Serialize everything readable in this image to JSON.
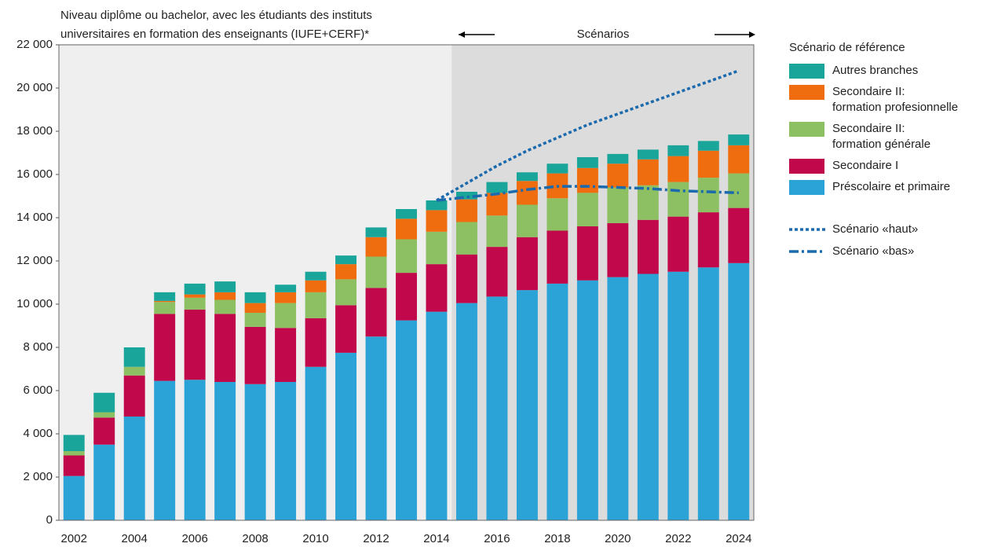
{
  "chart_data": {
    "type": "stacked_bar",
    "annotations": {
      "note": [
        "Niveau diplôme ou bachelor, avec les étudiants des instituts",
        "universitaires en formation des enseignants (IUFE+CERF)*"
      ],
      "scenarios": "Scénarios"
    },
    "legend_title": "Scénario de référence",
    "categories": [
      "2002",
      null,
      "2004",
      null,
      "2006",
      null,
      "2008",
      null,
      "2010",
      null,
      "2012",
      null,
      "2014",
      null,
      "2016",
      null,
      "2018",
      null,
      "2020",
      null,
      "2022",
      null,
      "2024"
    ],
    "series": [
      {
        "name": "Préscolaire et primaire",
        "color": "#2ba3d6",
        "values": [
          2050,
          3500,
          4800,
          6450,
          6500,
          6400,
          6300,
          6400,
          7100,
          7750,
          8500,
          9250,
          9650,
          10050,
          10350,
          10650,
          10950,
          11100,
          11250,
          11400,
          11500,
          11700,
          11900
        ]
      },
      {
        "name": "Secondaire I",
        "color": "#c0084a",
        "values": [
          950,
          1250,
          1900,
          3100,
          3250,
          3150,
          2650,
          2500,
          2250,
          2200,
          2250,
          2200,
          2200,
          2250,
          2300,
          2450,
          2450,
          2500,
          2500,
          2500,
          2550,
          2550,
          2550
        ]
      },
      {
        "name": "Secondaire II:\nformation générale",
        "color": "#8cc063",
        "values": [
          200,
          250,
          400,
          550,
          550,
          650,
          650,
          1150,
          1200,
          1200,
          1450,
          1550,
          1500,
          1500,
          1450,
          1500,
          1500,
          1550,
          1650,
          1600,
          1600,
          1600,
          1600
        ]
      },
      {
        "name": "Secondaire II:\nformation profesionnelle",
        "color": "#ef6c0f",
        "values": [
          0,
          0,
          0,
          50,
          150,
          350,
          450,
          500,
          550,
          700,
          900,
          950,
          1000,
          1050,
          1050,
          1100,
          1150,
          1150,
          1100,
          1200,
          1200,
          1250,
          1300
        ]
      },
      {
        "name": "Autres branches",
        "color": "#1aa59a",
        "values": [
          750,
          900,
          900,
          400,
          500,
          500,
          500,
          350,
          400,
          400,
          450,
          450,
          450,
          350,
          500,
          400,
          450,
          500,
          450,
          450,
          500,
          450,
          500
        ]
      }
    ],
    "lines": [
      {
        "name": "Scénario «haut»",
        "color": "#1a6aad",
        "style": "dotted",
        "values": [
          null,
          null,
          null,
          null,
          null,
          null,
          null,
          null,
          null,
          null,
          null,
          null,
          14800,
          15600,
          16400,
          17100,
          17700,
          18300,
          18800,
          19300,
          19800,
          20300,
          20800
        ]
      },
      {
        "name": "Scénario «bas»",
        "color": "#1a6aad",
        "style": "dashdot",
        "values": [
          null,
          null,
          null,
          null,
          null,
          null,
          null,
          null,
          null,
          null,
          null,
          null,
          14800,
          14950,
          15100,
          15300,
          15450,
          15450,
          15400,
          15350,
          15250,
          15200,
          15150
        ]
      }
    ],
    "ylim": [
      0,
      22000
    ],
    "yticks": [
      0,
      {
        "value": 2000,
        "label": "2 000"
      },
      {
        "value": 4000,
        "label": "4 000"
      },
      {
        "value": 6000,
        "label": "6 000"
      },
      {
        "value": 8000,
        "label": "8 000"
      },
      {
        "value": 10000,
        "label": "10 000"
      },
      {
        "value": 12000,
        "label": "12 000"
      },
      {
        "value": 14000,
        "label": "14 000"
      },
      {
        "value": 16000,
        "label": "16 000"
      },
      {
        "value": 18000,
        "label": "18 000"
      },
      {
        "value": 20000,
        "label": "20 000"
      },
      {
        "value": 22000,
        "label": "22 000"
      }
    ],
    "grid": false
  }
}
